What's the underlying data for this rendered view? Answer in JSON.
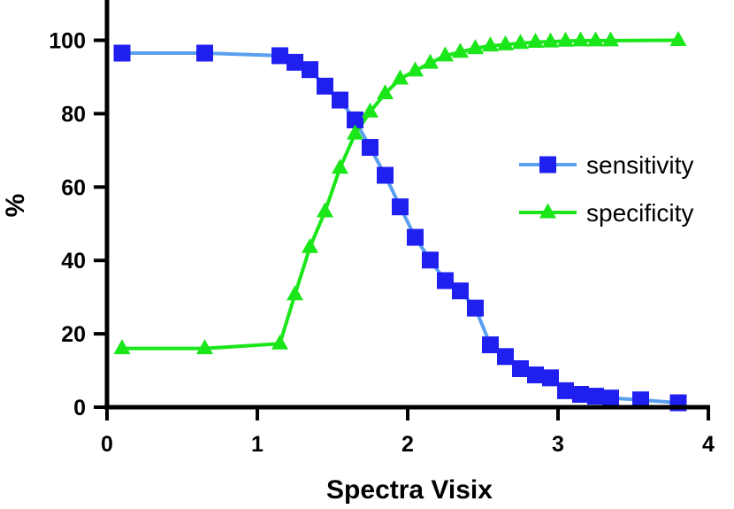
{
  "chart_data": {
    "type": "line",
    "xlabel": "Spectra Visix",
    "ylabel": "%",
    "xlim": [
      0,
      4
    ],
    "ylim": [
      0,
      100
    ],
    "xticks": [
      0,
      1,
      2,
      3,
      4
    ],
    "yticks": [
      0,
      20,
      40,
      60,
      80,
      100
    ],
    "grid": false,
    "legend_position": "right",
    "series": [
      {
        "name": "sensitivity",
        "color": "#5aa0f0",
        "marker_color": "#1f1ff0",
        "marker": "square",
        "x": [
          0.1,
          0.65,
          1.15,
          1.25,
          1.35,
          1.45,
          1.55,
          1.65,
          1.75,
          1.85,
          1.95,
          2.05,
          2.15,
          2.25,
          2.35,
          2.45,
          2.55,
          2.65,
          2.75,
          2.85,
          2.95,
          3.05,
          3.15,
          3.25,
          3.35,
          3.55,
          3.8
        ],
        "y": [
          96.5,
          96.5,
          95.8,
          94.0,
          92.0,
          87.5,
          83.7,
          78.3,
          70.8,
          63.2,
          54.6,
          46.3,
          40.1,
          34.5,
          31.7,
          27.0,
          17.0,
          13.8,
          10.5,
          8.8,
          8.0,
          4.5,
          3.5,
          3.0,
          2.5,
          2.0,
          1.2
        ]
      },
      {
        "name": "specificity",
        "color": "#1ae61a",
        "marker_color": "#1ae61a",
        "marker": "triangle",
        "x": [
          0.1,
          0.65,
          1.15,
          1.25,
          1.35,
          1.45,
          1.55,
          1.65,
          1.75,
          1.85,
          1.95,
          2.05,
          2.15,
          2.25,
          2.35,
          2.45,
          2.55,
          2.65,
          2.75,
          2.85,
          2.95,
          3.05,
          3.15,
          3.25,
          3.35,
          3.8
        ],
        "y": [
          16.0,
          16.0,
          17.3,
          30.7,
          43.6,
          53.3,
          65.2,
          74.5,
          80.5,
          85.5,
          89.5,
          91.7,
          93.8,
          95.8,
          96.8,
          97.8,
          98.5,
          98.8,
          99.2,
          99.5,
          99.6,
          99.8,
          99.9,
          99.9,
          99.9,
          100.0
        ]
      }
    ]
  }
}
